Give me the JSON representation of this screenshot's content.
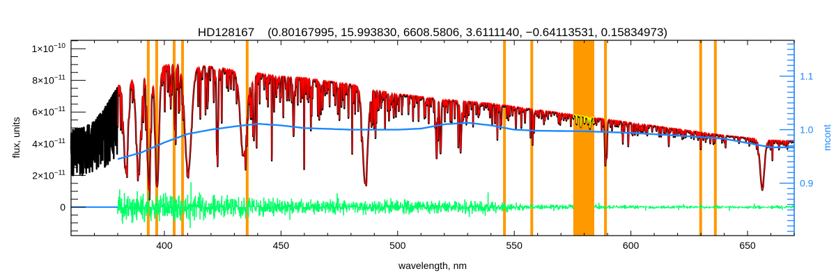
{
  "chart_data": {
    "type": "line",
    "title": "HD128167    (0.80167995, 15.993830, 6608.5806, 3.6111140, −0.64113531, 0.15834973)",
    "xlabel": "wavelength, nm",
    "ylabel": "flux, units",
    "y2label": "mcont",
    "xlim": [
      360,
      670
    ],
    "ylim": [
      -1.8e-11,
      1.053e-10
    ],
    "y2lim": [
      0.802,
      1.167
    ],
    "grid": false,
    "x_ticks": [
      {
        "value": 400,
        "label": "400"
      },
      {
        "value": 450,
        "label": "450"
      },
      {
        "value": 500,
        "label": "500"
      },
      {
        "value": 550,
        "label": "550"
      },
      {
        "value": 600,
        "label": "600"
      },
      {
        "value": 650,
        "label": "650"
      }
    ],
    "y_ticks": [
      {
        "value": 0,
        "mantissa": "0",
        "exponent": ""
      },
      {
        "value": 2e-11,
        "mantissa": "2×10",
        "exponent": "−11"
      },
      {
        "value": 4e-11,
        "mantissa": "4×10",
        "exponent": "−11"
      },
      {
        "value": 6e-11,
        "mantissa": "6×10",
        "exponent": "−11"
      },
      {
        "value": 8e-11,
        "mantissa": "8×10",
        "exponent": "−11"
      },
      {
        "value": 1e-10,
        "mantissa": "1×10",
        "exponent": "−10"
      }
    ],
    "y2_ticks": [
      {
        "value": 0.9,
        "label": "0.9"
      },
      {
        "value": 1.0,
        "label": "1.0"
      },
      {
        "value": 1.1,
        "label": "1.1"
      }
    ],
    "observed_continuum_envelope": [
      [
        360,
        4.9e-11
      ],
      [
        365,
        5e-11
      ],
      [
        370,
        5.4e-11
      ],
      [
        375,
        6.4e-11
      ],
      [
        380,
        7.6e-11
      ],
      [
        385,
        8.1e-11
      ],
      [
        390,
        8.4e-11
      ],
      [
        395,
        8.6e-11
      ],
      [
        400,
        8.9e-11
      ],
      [
        405,
        9e-11
      ],
      [
        410,
        8.9e-11
      ],
      [
        420,
        8.8e-11
      ],
      [
        430,
        8.6e-11
      ],
      [
        440,
        8.4e-11
      ],
      [
        450,
        8.2e-11
      ],
      [
        460,
        8.1e-11
      ],
      [
        470,
        7.9e-11
      ],
      [
        480,
        7.7e-11
      ],
      [
        490,
        7.35e-11
      ],
      [
        500,
        7.1e-11
      ],
      [
        520,
        6.75e-11
      ],
      [
        540,
        6.5e-11
      ],
      [
        560,
        6.1e-11
      ],
      [
        580,
        5.7e-11
      ],
      [
        600,
        5.3e-11
      ],
      [
        620,
        4.9e-11
      ],
      [
        640,
        4.5e-11
      ],
      [
        660,
        4.2e-11
      ],
      [
        670,
        4.15e-11
      ]
    ],
    "strong_lines": [
      {
        "wavelength": 383.5,
        "depth": 0.7,
        "width": 0.9
      },
      {
        "wavelength": 388.9,
        "depth": 0.72,
        "width": 1.0
      },
      {
        "wavelength": 393.4,
        "depth": 0.83,
        "width": 0.7
      },
      {
        "wavelength": 396.9,
        "depth": 0.85,
        "width": 0.8
      },
      {
        "wavelength": 404.6,
        "depth": 0.45,
        "width": 0.3
      },
      {
        "wavelength": 410.2,
        "depth": 0.75,
        "width": 1.4
      },
      {
        "wavelength": 422.7,
        "depth": 0.55,
        "width": 0.3
      },
      {
        "wavelength": 434.0,
        "depth": 0.62,
        "width": 1.4
      },
      {
        "wavelength": 438.4,
        "depth": 0.5,
        "width": 0.3
      },
      {
        "wavelength": 455.4,
        "depth": 0.45,
        "width": 0.25
      },
      {
        "wavelength": 486.1,
        "depth": 0.8,
        "width": 1.1
      },
      {
        "wavelength": 516.7,
        "depth": 0.5,
        "width": 0.3
      },
      {
        "wavelength": 518.4,
        "depth": 0.5,
        "width": 0.3
      },
      {
        "wavelength": 527.0,
        "depth": 0.4,
        "width": 0.3
      },
      {
        "wavelength": 589.0,
        "depth": 0.45,
        "width": 0.25
      },
      {
        "wavelength": 589.6,
        "depth": 0.4,
        "width": 0.25
      },
      {
        "wavelength": 656.3,
        "depth": 0.72,
        "width": 0.9
      }
    ],
    "mcont": [
      [
        380,
        0.945
      ],
      [
        390,
        0.957
      ],
      [
        400,
        0.976
      ],
      [
        410,
        0.992
      ],
      [
        420,
        1.0
      ],
      [
        430,
        1.006
      ],
      [
        440,
        1.011
      ],
      [
        450,
        1.008
      ],
      [
        460,
        1.003
      ],
      [
        480,
        1.0
      ],
      [
        500,
        1.0
      ],
      [
        510,
        1.002
      ],
      [
        520,
        1.01
      ],
      [
        530,
        1.013
      ],
      [
        540,
        1.008
      ],
      [
        550,
        1.0
      ],
      [
        560,
        0.998
      ],
      [
        580,
        0.997
      ],
      [
        600,
        0.994
      ],
      [
        620,
        0.989
      ],
      [
        640,
        0.983
      ],
      [
        650,
        0.975
      ],
      [
        660,
        0.967
      ],
      [
        670,
        0.967
      ]
    ],
    "residual_amplitude": [
      [
        380,
        1.2e-11
      ],
      [
        420,
        1e-11
      ],
      [
        450,
        6e-12
      ],
      [
        500,
        5e-12
      ],
      [
        540,
        4.5e-12
      ],
      [
        560,
        2e-12
      ],
      [
        600,
        1.5e-12
      ],
      [
        670,
        1.2e-12
      ]
    ],
    "model_start": 380,
    "masked_regions": [
      [
        392.5,
        393.7
      ],
      [
        396.1,
        397.3
      ],
      [
        403.6,
        404.8
      ],
      [
        407.2,
        408.4
      ],
      [
        434.9,
        436.1
      ],
      [
        545.2,
        546.4
      ],
      [
        556.9,
        558.1
      ],
      [
        575.3,
        584.3
      ],
      [
        588.5,
        589.7
      ],
      [
        629.3,
        630.5
      ],
      [
        635.6,
        636.8
      ]
    ],
    "colors": {
      "observed": "#000000",
      "model": "#ff0000",
      "model_masked": "#ffff00",
      "continuum": "#1a88ff",
      "residuals": "#00ff66",
      "mask": "#ff9900",
      "right_axis": "#1a88ff"
    }
  }
}
